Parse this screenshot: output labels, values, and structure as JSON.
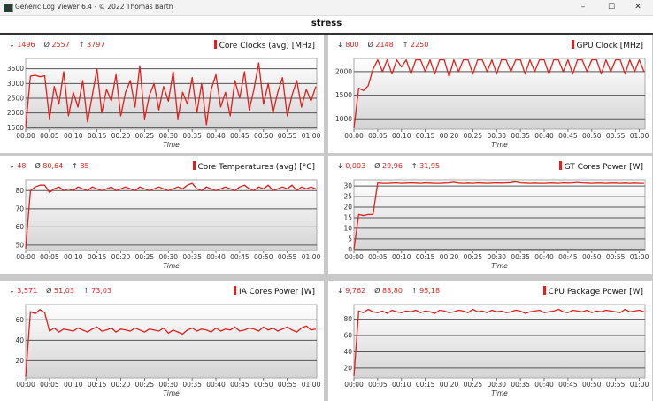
{
  "window": {
    "title": "Generic Log Viewer 6.4 - © 2022 Thomas Barth",
    "minimize": "–",
    "maximize": "☐",
    "close": "✕"
  },
  "header": {
    "title": "stress"
  },
  "colors": {
    "series": "#e0201c",
    "grid": "#555555"
  },
  "chart_data": [
    {
      "type": "line",
      "title": "Core Clocks (avg) [MHz]",
      "stats": {
        "min": "1496",
        "avg": "2557",
        "max": "3797"
      },
      "xlabel": "Time",
      "ylim": [
        1450,
        3850
      ],
      "yticks": [
        1500,
        2000,
        2500,
        3000,
        3500
      ],
      "xticks": [
        "00:00",
        "00:05",
        "00:10",
        "00:15",
        "00:20",
        "00:25",
        "00:30",
        "00:35",
        "00:40",
        "00:45",
        "00:50",
        "00:55",
        "01:00"
      ],
      "grid": true,
      "values": [
        1500,
        3250,
        3280,
        3230,
        3260,
        1800,
        2900,
        2300,
        3400,
        1900,
        2700,
        2200,
        3100,
        1700,
        2600,
        3500,
        2000,
        2800,
        2400,
        3300,
        1900,
        2700,
        3100,
        2200,
        3600,
        1800,
        2600,
        3000,
        2100,
        2900,
        2400,
        3400,
        1800,
        2700,
        2300,
        3200,
        2000,
        3000,
        1600,
        2800,
        3300,
        2200,
        2700,
        1900,
        3100,
        2500,
        3400,
        2100,
        2800,
        3700,
        2300,
        3000,
        2000,
        2700,
        3200,
        1900,
        2600,
        3100,
        2200,
        2800,
        2400,
        2900
      ]
    },
    {
      "type": "line",
      "title": "GPU Clock [MHz]",
      "stats": {
        "min": "800",
        "avg": "2148",
        "max": "2250"
      },
      "xlabel": "Time",
      "ylim": [
        780,
        2280
      ],
      "yticks": [
        1000,
        1500,
        2000
      ],
      "xticks": [
        "00:00",
        "00:05",
        "00:10",
        "00:15",
        "00:20",
        "00:25",
        "00:30",
        "00:35",
        "00:40",
        "00:45",
        "00:50",
        "00:55",
        "01:00"
      ],
      "grid": true,
      "values": [
        800,
        1650,
        1600,
        1700,
        2050,
        2250,
        2000,
        2250,
        1950,
        2250,
        2100,
        2250,
        1950,
        2250,
        2250,
        2000,
        2250,
        1950,
        2250,
        2250,
        1900,
        2250,
        2000,
        2250,
        2250,
        1950,
        2250,
        2250,
        2000,
        2250,
        1950,
        2250,
        2250,
        2000,
        2250,
        2250,
        1950,
        2250,
        2000,
        2250,
        2250,
        1950,
        2250,
        2250,
        2000,
        2250,
        1950,
        2250,
        2250,
        2000,
        2250,
        2250,
        1950,
        2250,
        2000,
        2250,
        2250,
        1950,
        2250,
        2000,
        2250,
        2000
      ]
    },
    {
      "type": "line",
      "title": "Core Temperatures (avg) [°C]",
      "stats": {
        "min": "48",
        "avg": "80,64",
        "max": "85"
      },
      "xlabel": "Time",
      "ylim": [
        47,
        86
      ],
      "yticks": [
        50,
        60,
        70,
        80
      ],
      "xticks": [
        "00:00",
        "00:05",
        "00:10",
        "00:15",
        "00:20",
        "00:25",
        "00:30",
        "00:35",
        "00:40",
        "00:45",
        "00:50",
        "00:55",
        "01:00"
      ],
      "grid": true,
      "values": [
        48,
        80,
        82,
        83,
        83,
        79,
        81,
        82,
        80,
        81,
        80,
        82,
        81,
        80,
        82,
        81,
        80,
        81,
        82,
        80,
        81,
        82,
        81,
        80,
        82,
        81,
        80,
        81,
        82,
        81,
        80,
        81,
        82,
        81,
        83,
        84,
        81,
        80,
        82,
        81,
        80,
        81,
        82,
        81,
        80,
        82,
        83,
        81,
        80,
        82,
        81,
        83,
        80,
        81,
        82,
        81,
        83,
        80,
        82,
        81,
        82,
        81
      ]
    },
    {
      "type": "line",
      "title": "GT Cores Power [W]",
      "stats": {
        "min": "0,003",
        "avg": "29,96",
        "max": "31,95"
      },
      "xlabel": "Time",
      "ylim": [
        -0.5,
        33
      ],
      "yticks": [
        0,
        5,
        10,
        15,
        20,
        25,
        30
      ],
      "xticks": [
        "00:00",
        "00:05",
        "00:10",
        "00:15",
        "00:20",
        "00:25",
        "00:30",
        "00:35",
        "00:40",
        "00:45",
        "00:50",
        "00:55",
        "01:00"
      ],
      "grid": true,
      "values": [
        0,
        16.5,
        16,
        16.5,
        16.5,
        31.5,
        31.3,
        31.3,
        31.4,
        31.5,
        31.3,
        31.4,
        31.5,
        31.4,
        31.3,
        31.5,
        31.4,
        31.3,
        31.3,
        31.4,
        31.5,
        31.8,
        31.4,
        31.3,
        31.4,
        31.3,
        31.5,
        31.4,
        31.3,
        31.4,
        31.5,
        31.4,
        31.5,
        31.6,
        32,
        31.5,
        31.4,
        31.3,
        31.4,
        31.3,
        31.3,
        31.4,
        31.4,
        31.3,
        31.5,
        31.4,
        31.5,
        31.7,
        31.5,
        31.4,
        31.3,
        31.4,
        31.4,
        31.3,
        31.4,
        31.4,
        31.3,
        31.4,
        31.3,
        31.4,
        31.3,
        31.3
      ]
    },
    {
      "type": "line",
      "title": "IA Cores Power [W]",
      "stats": {
        "min": "3,571",
        "avg": "51,03",
        "max": "73,03"
      },
      "xlabel": "Time",
      "ylim": [
        3,
        75
      ],
      "yticks": [
        20,
        40,
        60
      ],
      "xticks": [
        "00:00",
        "00:05",
        "00:10",
        "00:15",
        "00:20",
        "00:25",
        "00:30",
        "00:35",
        "00:40",
        "00:45",
        "00:50",
        "00:55",
        "01:00"
      ],
      "grid": true,
      "values": [
        4,
        68,
        66,
        70,
        67,
        49,
        52,
        48,
        51,
        50,
        49,
        52,
        50,
        48,
        51,
        53,
        49,
        50,
        52,
        48,
        51,
        50,
        49,
        52,
        50,
        48,
        51,
        50,
        49,
        52,
        47,
        50,
        48,
        46,
        50,
        52,
        49,
        51,
        50,
        48,
        52,
        49,
        51,
        50,
        53,
        49,
        50,
        52,
        51,
        49,
        53,
        50,
        52,
        49,
        51,
        53,
        50,
        48,
        52,
        54,
        50,
        51
      ]
    },
    {
      "type": "line",
      "title": "CPU Package Power [W]",
      "stats": {
        "min": "9,762",
        "avg": "88,80",
        "max": "95,18"
      },
      "xlabel": "Time",
      "ylim": [
        8,
        98
      ],
      "yticks": [
        20,
        40,
        60,
        80
      ],
      "xticks": [
        "00:00",
        "00:05",
        "00:10",
        "00:15",
        "00:20",
        "00:25",
        "00:30",
        "00:35",
        "00:40",
        "00:45",
        "00:50",
        "00:55",
        "01:00"
      ],
      "grid": true,
      "values": [
        10,
        90,
        88,
        92,
        89,
        88,
        90,
        87,
        91,
        89,
        88,
        90,
        89,
        91,
        88,
        90,
        89,
        87,
        91,
        90,
        88,
        89,
        91,
        90,
        88,
        92,
        89,
        90,
        88,
        91,
        89,
        90,
        88,
        89,
        91,
        90,
        87,
        89,
        90,
        91,
        88,
        89,
        90,
        92,
        89,
        88,
        91,
        90,
        89,
        91,
        88,
        90,
        89,
        91,
        90,
        89,
        88,
        92,
        89,
        90,
        91,
        89
      ]
    }
  ],
  "stat_symbols": {
    "min": "↓",
    "avg": "Ø",
    "max": "↑"
  }
}
